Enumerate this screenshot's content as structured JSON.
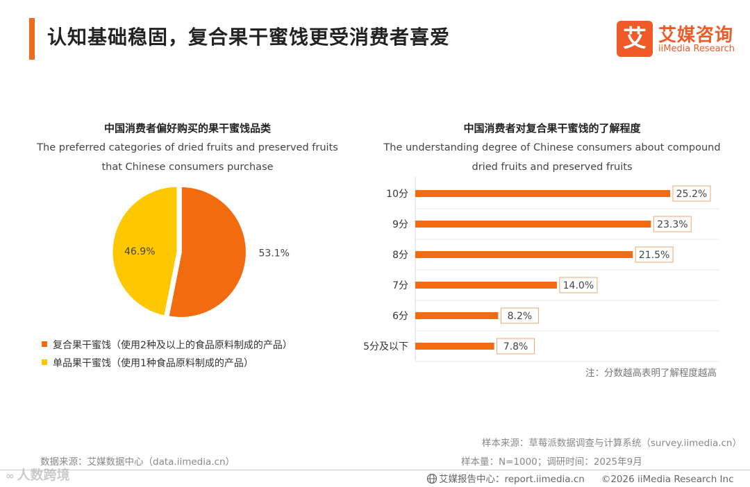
{
  "header": {
    "title": "认知基础稳固，复合果干蜜饯更受消费者喜爱",
    "logo_mark": "艾",
    "logo_cn": "艾媒咨询",
    "logo_en": "iiMedia Research",
    "accent_color": "#ee6a1f"
  },
  "left_chart": {
    "title_cn": "中国消费者偏好购买的果干蜜饯品类",
    "subtitle_en": "The preferred categories of dried fruits and preserved fruits that Chinese consumers purchase",
    "legend": [
      {
        "label": "复合果干蜜饯（使用2种及以上的食品原料制成的产品）",
        "color": "#f26b0f"
      },
      {
        "label": "单品果干蜜饯（使用1种食品原料制成的产品）",
        "color": "#fec800"
      }
    ]
  },
  "right_chart": {
    "title_cn": "中国消费者对复合果干蜜饯的了解程度",
    "subtitle_en": "The understanding degree of Chinese consumers about compound dried fruits and preserved fruits",
    "note": "注：分数越高表明了解程度越高"
  },
  "chart_data": [
    {
      "type": "pie",
      "categories": [
        "复合果干蜜饯（使用2种及以上的食品原料制成的产品）",
        "单品果干蜜饯（使用1种食品原料制成的产品）"
      ],
      "values": [
        53.1,
        46.9
      ],
      "labels": [
        "53.1%",
        "46.9%"
      ],
      "colors": [
        "#f26b0f",
        "#fec800"
      ],
      "title": "中国消费者偏好购买的果干蜜饯品类"
    },
    {
      "type": "bar",
      "orientation": "horizontal",
      "categories": [
        "10分",
        "9分",
        "8分",
        "7分",
        "6分",
        "5分及以下"
      ],
      "values": [
        25.2,
        23.3,
        21.5,
        14.0,
        8.2,
        7.8
      ],
      "labels": [
        "25.2%",
        "23.3%",
        "21.5%",
        "14.0%",
        "8.2%",
        "7.8%"
      ],
      "color": "#f26b0f",
      "title": "中国消费者对复合果干蜜饯的了解程度",
      "xlim": [
        0,
        30
      ],
      "grid": "horizontal"
    }
  ],
  "footer": {
    "data_source": "数据来源：艾媒数据中心（data.iimedia.cn）",
    "sample_source": "样本来源：草莓派数据调查与计算系统（survey.iimedia.cn）",
    "sample_info": "样本量：N=1000；调研时间：2025年9月",
    "report_center": "艾媒报告中心：report.iimedia.cn",
    "copyright": "©2026  iiMedia Research Inc",
    "watermark": "人数跨境"
  }
}
